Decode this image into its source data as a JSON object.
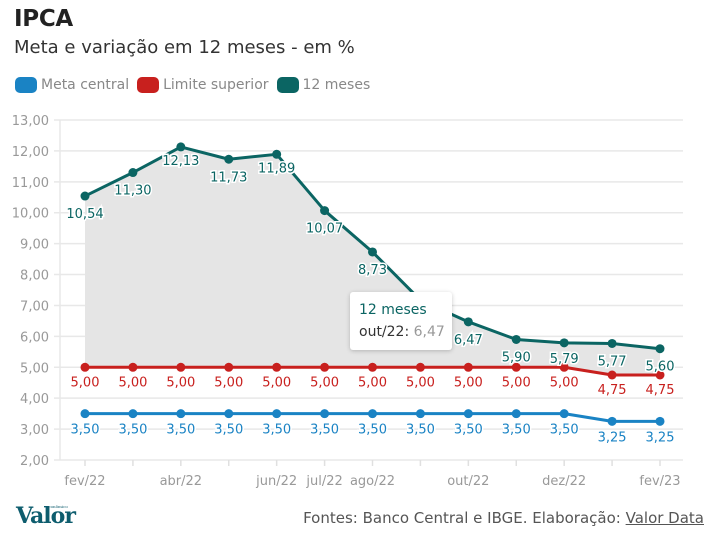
{
  "header": {
    "title": "IPCA",
    "subtitle": "Meta e variação em 12 meses - em %"
  },
  "legend": [
    {
      "label": "Meta central",
      "color": "#1a83c4"
    },
    {
      "label": "Limite superior",
      "color": "#c8201e"
    },
    {
      "label": "12 meses",
      "color": "#0b6563"
    }
  ],
  "tooltip": {
    "series": "12 meses",
    "label": "out/22:",
    "value": "6,47"
  },
  "footer": {
    "source_prefix": "Fontes: Banco Central e IBGE. Elaboração: ",
    "source_link": "Valor Data",
    "logo_text": "Valor",
    "logo_small": "econômico"
  },
  "chart_data": {
    "type": "line",
    "title": "IPCA",
    "subtitle": "Meta e variação em 12 meses - em %",
    "xlabel": "",
    "ylabel": "",
    "ylim": [
      2,
      13
    ],
    "yticks": [
      "2,00",
      "3,00",
      "4,00",
      "5,00",
      "6,00",
      "7,00",
      "8,00",
      "9,00",
      "10,00",
      "11,00",
      "12,00",
      "13,00"
    ],
    "grid": true,
    "legend_position": "top-left",
    "x": [
      "fev/22",
      "mar/22",
      "abr/22",
      "mai/22",
      "jun/22",
      "jul/22",
      "ago/22",
      "set/22",
      "out/22",
      "nov/22",
      "dez/22",
      "jan/23",
      "fev/23"
    ],
    "x_tick_labels": [
      "fev/22",
      "",
      "abr/22",
      "",
      "jun/22",
      "jul/22",
      "ago/22",
      "",
      "out/22",
      "",
      "dez/22",
      "",
      "fev/23"
    ],
    "series": [
      {
        "name": "12 meses",
        "color": "#0b6563",
        "area": true,
        "values": [
          10.54,
          11.3,
          12.13,
          11.73,
          11.89,
          10.07,
          8.73,
          7.17,
          6.47,
          5.9,
          5.79,
          5.77,
          5.6
        ],
        "labels": [
          "10,54",
          "11,30",
          "12,13",
          "11,73",
          "11,89",
          "10,07",
          "8,73",
          "",
          "6,47",
          "5,90",
          "5,79",
          "5,77",
          "5,60"
        ]
      },
      {
        "name": "Limite superior",
        "color": "#c8201e",
        "values": [
          5.0,
          5.0,
          5.0,
          5.0,
          5.0,
          5.0,
          5.0,
          5.0,
          5.0,
          5.0,
          5.0,
          4.75,
          4.75
        ],
        "labels": [
          "5,00",
          "5,00",
          "5,00",
          "5,00",
          "5,00",
          "5,00",
          "5,00",
          "5,00",
          "5,00",
          "5,00",
          "5,00",
          "4,75",
          "4,75"
        ]
      },
      {
        "name": "Meta central",
        "color": "#1a83c4",
        "values": [
          3.5,
          3.5,
          3.5,
          3.5,
          3.5,
          3.5,
          3.5,
          3.5,
          3.5,
          3.5,
          3.5,
          3.25,
          3.25
        ],
        "labels": [
          "3,50",
          "3,50",
          "3,50",
          "3,50",
          "3,50",
          "3,50",
          "3,50",
          "3,50",
          "3,50",
          "3,50",
          "3,50",
          "3,25",
          "3,25"
        ]
      }
    ]
  }
}
